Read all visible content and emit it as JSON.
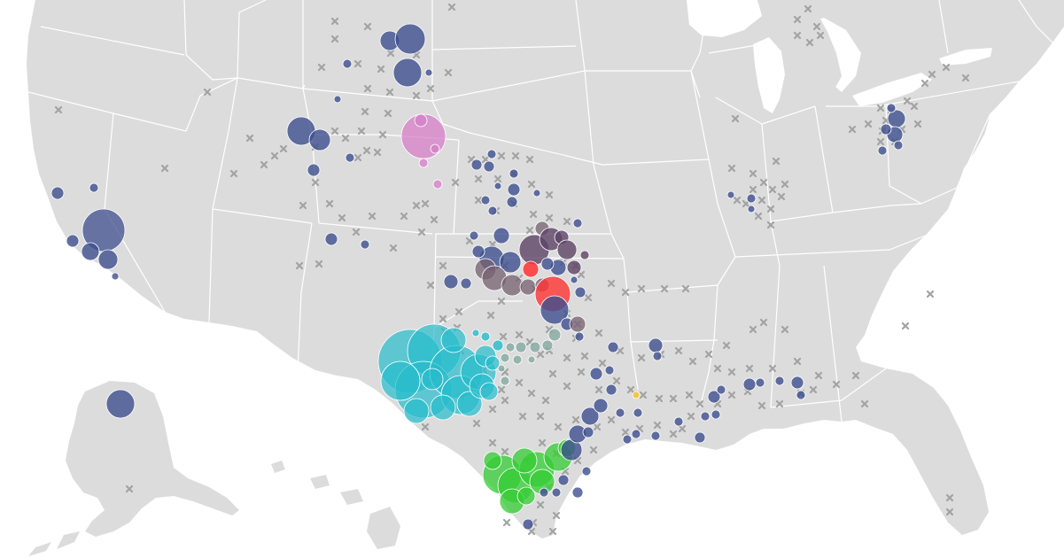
{
  "map": {
    "region": "United States",
    "projection": "albers-usa",
    "colors": {
      "land": "#dcdcdc",
      "state_border": "#ffffff",
      "background": "#ffffff",
      "marker_x": "#a3a3a3"
    },
    "marker_types": [
      {
        "name": "x-marker",
        "color": "#a3a3a3"
      },
      {
        "name": "navy",
        "color": "#3d4f8f"
      },
      {
        "name": "cyan",
        "color": "#27bccc"
      },
      {
        "name": "green",
        "color": "#33cc33"
      },
      {
        "name": "red",
        "color": "#ff3333"
      },
      {
        "name": "purple",
        "color": "#5e4466"
      },
      {
        "name": "mauve",
        "color": "#766070"
      },
      {
        "name": "pink",
        "color": "#d77fc8"
      },
      {
        "name": "teal-gray",
        "color": "#7fa79c"
      },
      {
        "name": "yellow",
        "color": "#f2c43a"
      }
    ]
  }
}
